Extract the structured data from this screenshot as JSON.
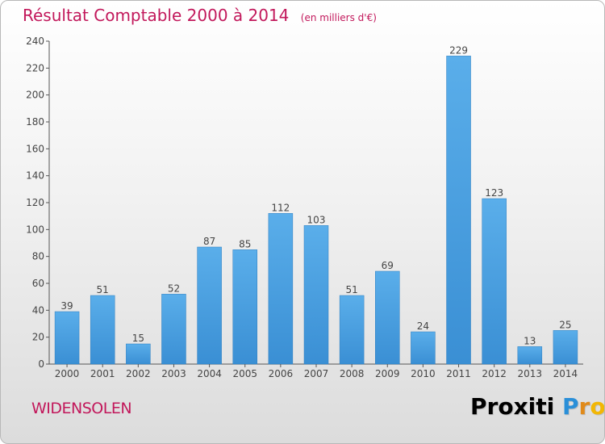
{
  "chart_data": {
    "type": "bar",
    "title": "Résultat Comptable 2000 à 2014",
    "subtitle": "(en milliers d'€)",
    "categories": [
      "2000",
      "2001",
      "2002",
      "2003",
      "2004",
      "2005",
      "2006",
      "2007",
      "2008",
      "2009",
      "2010",
      "2011",
      "2012",
      "2013",
      "2014"
    ],
    "values": [
      39,
      51,
      15,
      52,
      87,
      85,
      112,
      103,
      51,
      69,
      24,
      229,
      123,
      13,
      25
    ],
    "ylim": [
      0,
      240
    ],
    "yticks": [
      0,
      20,
      40,
      60,
      80,
      100,
      120,
      140,
      160,
      180,
      200,
      220,
      240
    ],
    "xlabel": "",
    "ylabel": "",
    "grid": false,
    "bar_color": "#3a8fd4"
  },
  "footer": {
    "city": "WIDENSOLEN",
    "logo": "Proxiti",
    "logo_letters": [
      "P",
      "r",
      "o",
      "x",
      "i",
      "t",
      "i"
    ],
    "logo_colors": [
      "#2a8fd8",
      "#e08a1a",
      "#f2b705",
      "#d62f2f",
      "#5aa632",
      "#2a8fd8",
      "#e08a1a"
    ]
  },
  "colors": {
    "accent": "#c2185b"
  }
}
